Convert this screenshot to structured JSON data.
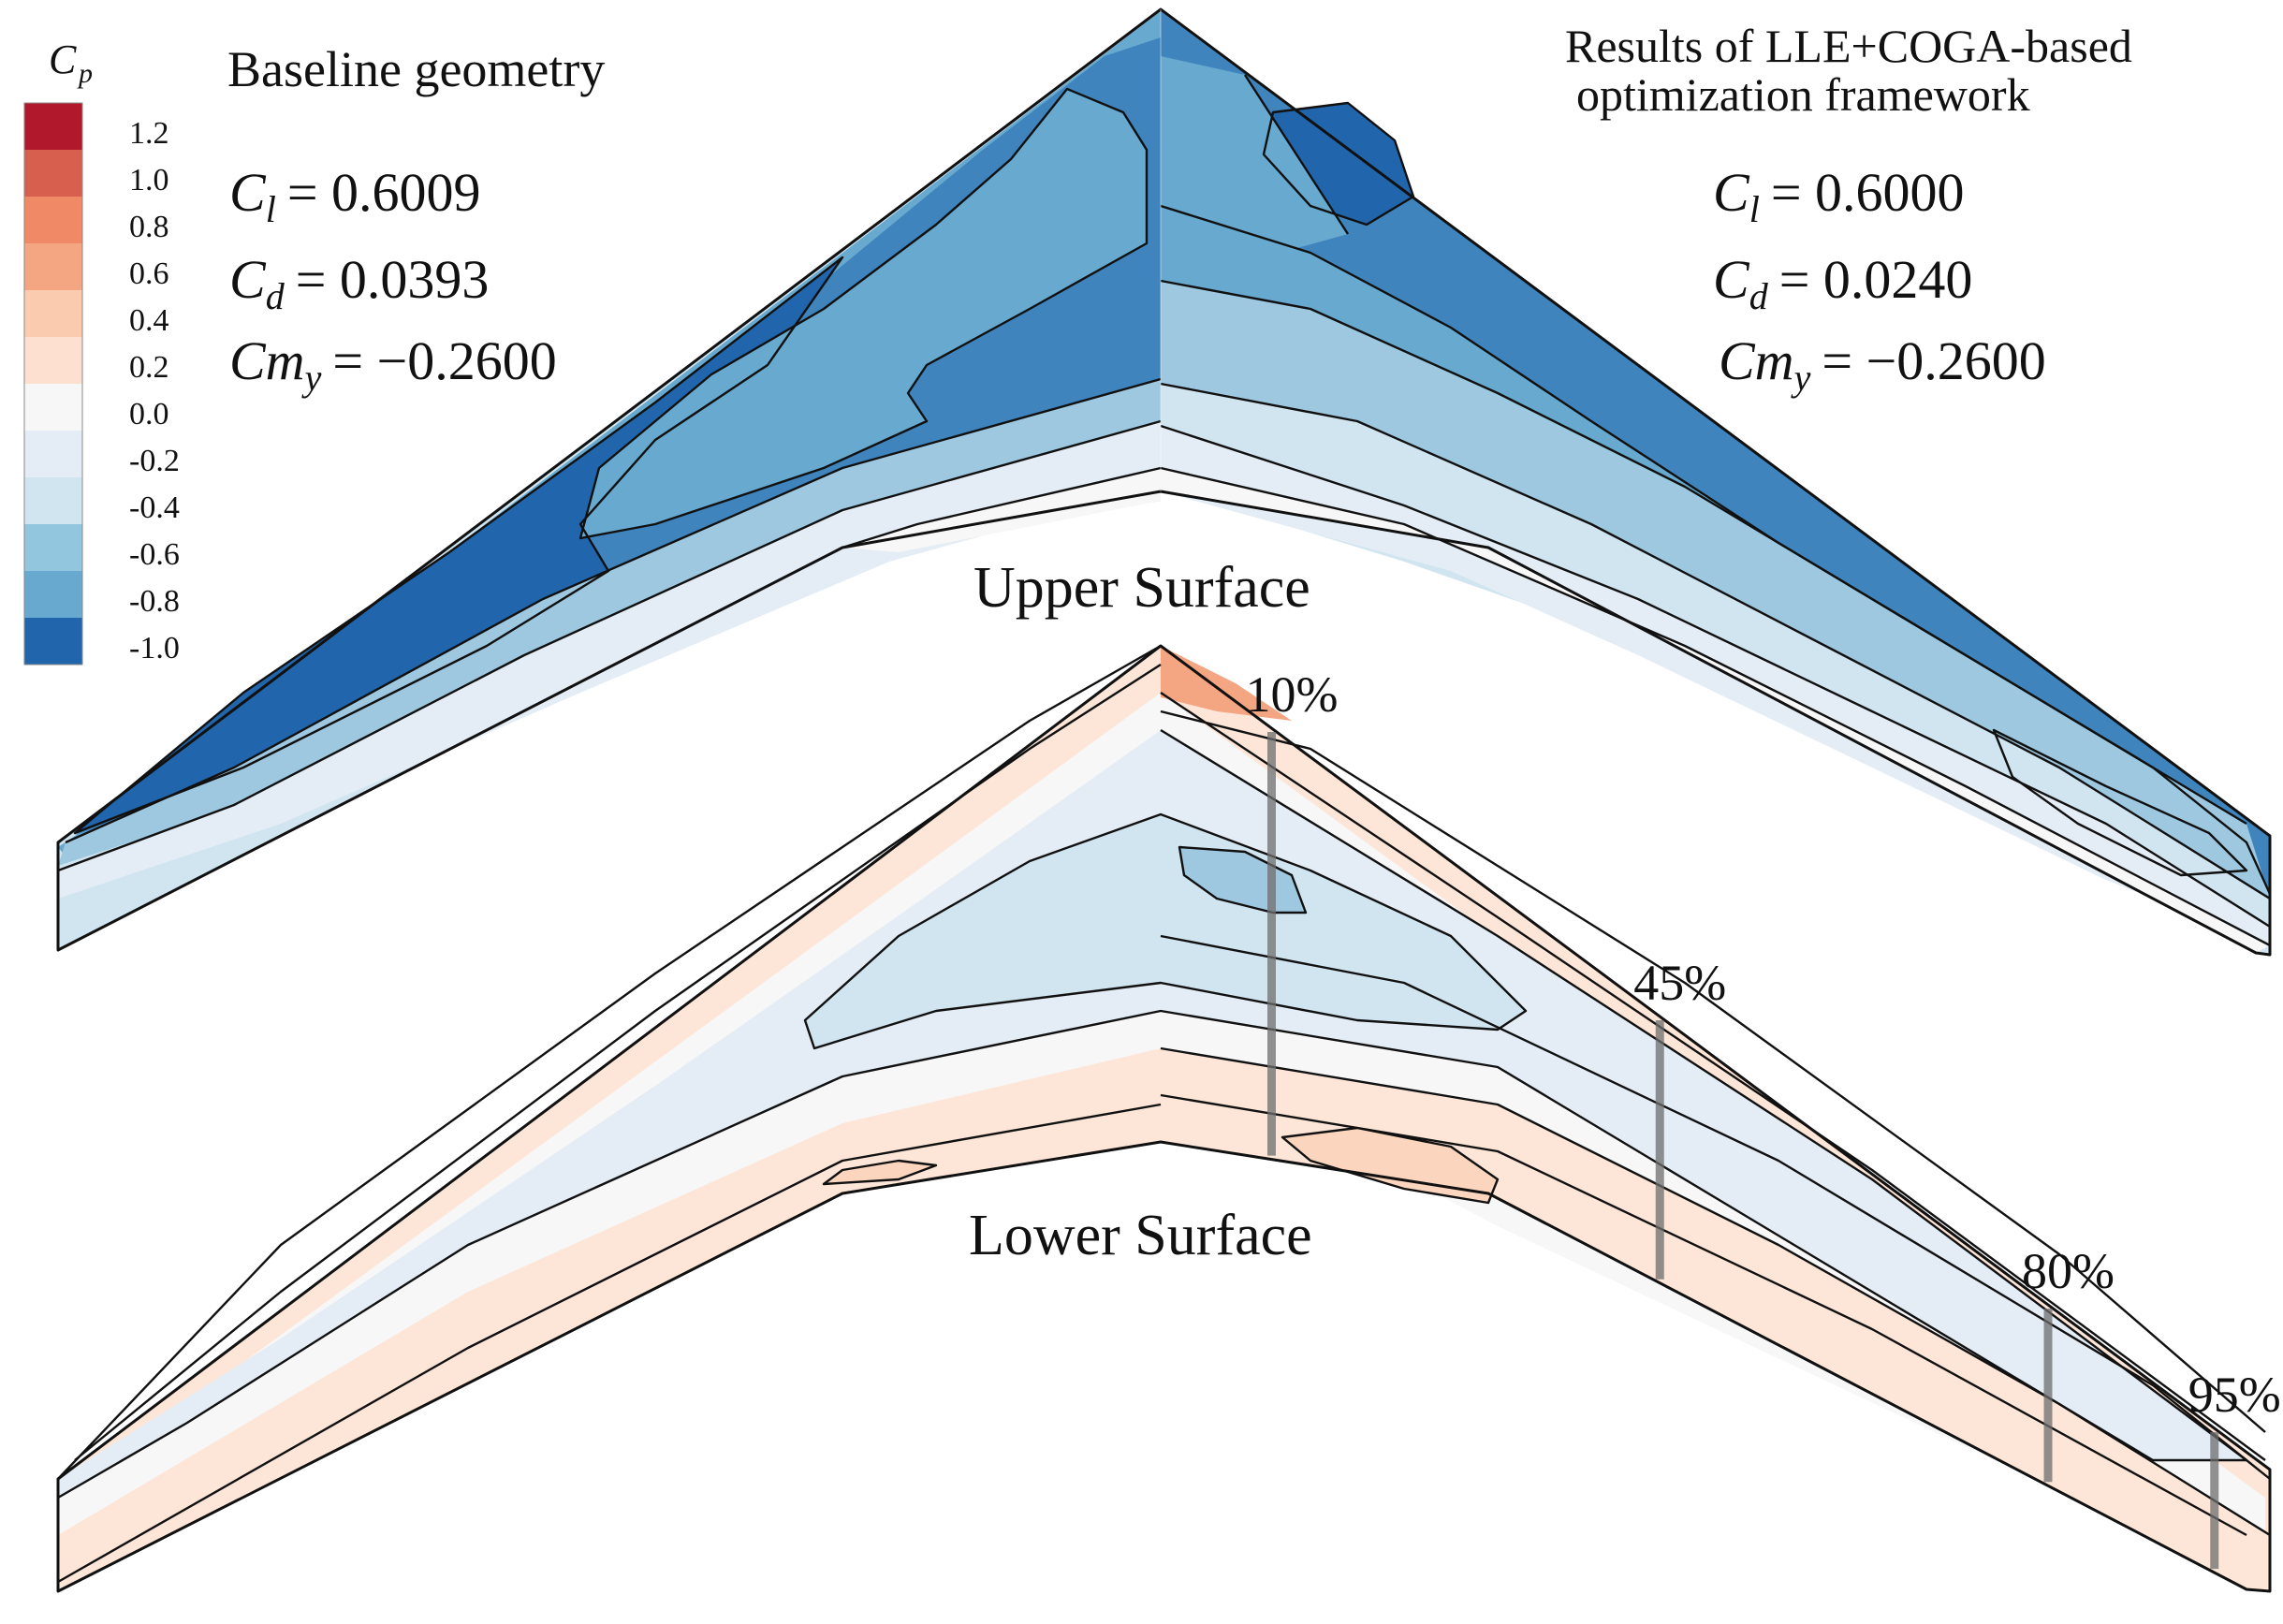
{
  "legend": {
    "title_symbol": "C",
    "title_subscript": "p",
    "levels": [
      "1.2",
      "1.0",
      "0.8",
      "0.6",
      "0.4",
      "0.2",
      "0.0",
      "-0.2",
      "-0.4",
      "-0.6",
      "-0.8",
      "-1.0"
    ],
    "colors": [
      "#b2182b",
      "#d6604d",
      "#f08a66",
      "#f4a582",
      "#fbcbb0",
      "#fde0d0",
      "#f7f7f7",
      "#e4edf5",
      "#d1e5f0",
      "#92c5de",
      "#67a9cf",
      "#2166ac"
    ]
  },
  "colors": {
    "deep_blue": "#2166ac",
    "blue": "#3f84bd",
    "mid_blue": "#67a9cf",
    "light_blue": "#9ec8e0",
    "pale_blue": "#d1e5f0",
    "very_pale_blue": "#e4edf5",
    "white": "#f7f7f7",
    "pale_orange": "#fde6d8",
    "light_orange": "#fbd5bd",
    "orange": "#f4a582",
    "station_line": "#6e6e6e"
  },
  "baseline": {
    "title": "Baseline geometry",
    "cl": {
      "symbol": "C",
      "sub": "l",
      "eq": "= 0.6009"
    },
    "cd": {
      "symbol": "C",
      "sub": "d",
      "eq": "= 0.0393"
    },
    "cm": {
      "symbol": "Cm",
      "sub": "y",
      "eq": "= −0.2600"
    }
  },
  "optimized": {
    "title_line1": "Results of LLE+COGA-based",
    "title_line2": "optimization framework",
    "cl": {
      "symbol": "C",
      "sub": "l",
      "eq": "= 0.6000"
    },
    "cd": {
      "symbol": "C",
      "sub": "d",
      "eq": "= 0.0240"
    },
    "cm": {
      "symbol": "Cm",
      "sub": "y",
      "eq": "= −0.2600"
    }
  },
  "surfaces": {
    "upper_label": "Upper Surface",
    "lower_label": "Lower Surface"
  },
  "stations": [
    {
      "label": "10%",
      "span_fraction": 0.1
    },
    {
      "label": "45%",
      "span_fraction": 0.45
    },
    {
      "label": "80%",
      "span_fraction": 0.8
    },
    {
      "label": "95%",
      "span_fraction": 0.95
    }
  ]
}
